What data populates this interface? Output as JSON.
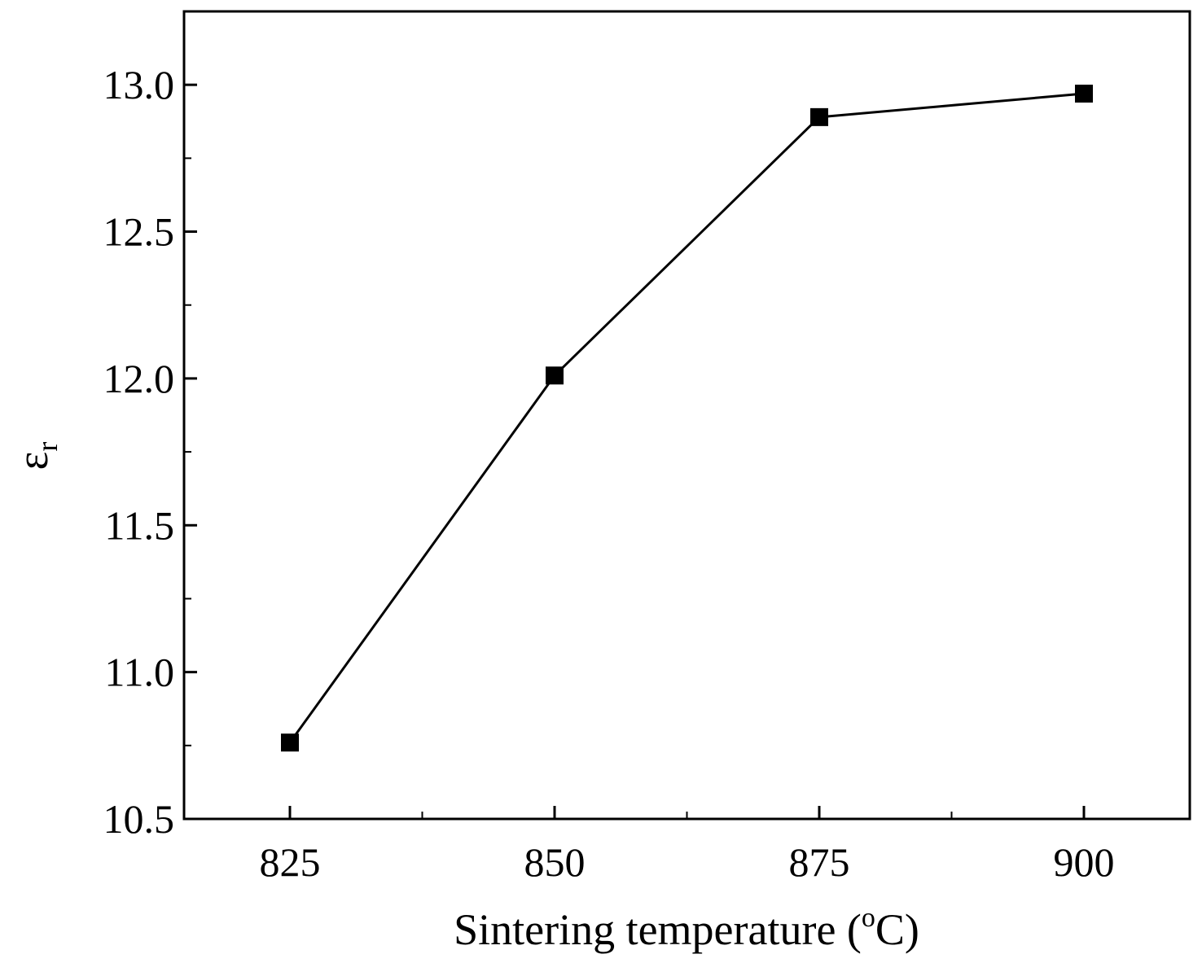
{
  "chart_data": {
    "type": "line",
    "title": "",
    "xlabel": "Sintering temperature (oC)",
    "xlabel_parts": {
      "pre": "Sintering temperature (",
      "sup": "o",
      "post": "C)"
    },
    "ylabel": "εr",
    "ylabel_parts": {
      "main": "ε",
      "sub": "r"
    },
    "xlim": [
      815,
      910
    ],
    "ylim": [
      10.5,
      13.25
    ],
    "x_ticks": [
      825,
      850,
      875,
      900
    ],
    "x_tick_labels": [
      "825",
      "850",
      "875",
      "900"
    ],
    "y_ticks": [
      10.5,
      11.0,
      11.5,
      12.0,
      12.5,
      13.0
    ],
    "y_tick_labels": [
      "10.5",
      "11.0",
      "11.5",
      "12.0",
      "12.5",
      "13.0"
    ],
    "grid": false,
    "series": [
      {
        "name": "εr",
        "marker": "square",
        "color": "#000000",
        "x": [
          825,
          850,
          875,
          900
        ],
        "y": [
          10.76,
          12.01,
          12.89,
          12.97
        ]
      }
    ]
  }
}
